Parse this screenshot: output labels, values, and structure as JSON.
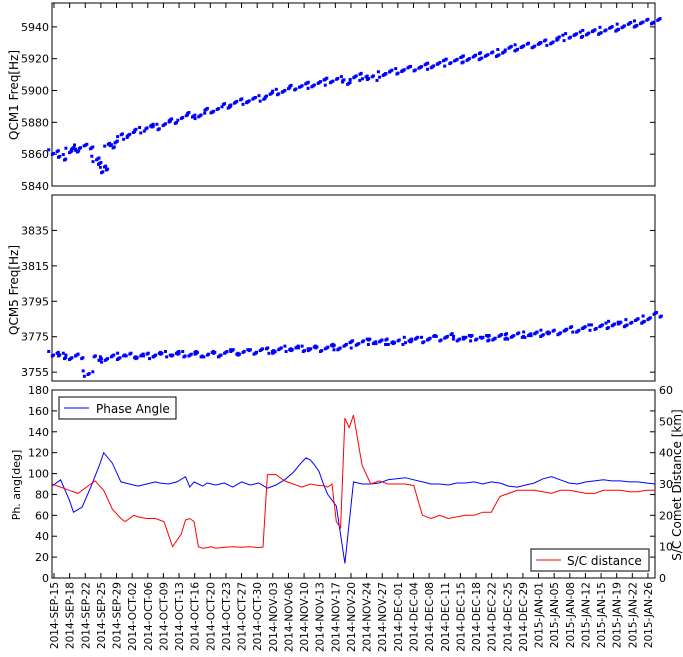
{
  "chart_data": [
    {
      "type": "scatter",
      "ylabel": "QCM1 Freq[Hz]",
      "ylim": [
        5840,
        5955
      ],
      "yticks": [
        5840,
        5860,
        5880,
        5900,
        5920,
        5940
      ],
      "xlim": [
        0,
        140
      ],
      "color": "#0000ff",
      "series": [
        {
          "x": [
            0,
            2,
            4,
            5,
            6,
            8,
            10,
            11,
            12,
            13,
            14,
            16,
            18,
            20,
            22,
            24,
            26,
            28,
            30,
            32,
            34,
            36,
            38,
            40,
            42,
            44,
            46,
            48,
            50,
            52,
            54,
            56,
            58,
            60,
            62,
            64,
            66,
            68,
            70,
            72,
            74,
            76,
            78,
            80,
            82,
            84,
            86,
            88,
            90,
            92,
            94,
            96,
            98,
            100,
            102,
            104,
            106,
            108,
            110,
            112,
            114,
            116,
            118,
            120,
            122,
            124,
            126,
            128,
            130,
            132,
            134,
            136,
            138,
            140
          ],
          "y": [
            5862,
            5859,
            5863,
            5864,
            5865,
            5866,
            5858,
            5854,
            5851,
            5866,
            5868,
            5872,
            5874,
            5876,
            5878,
            5878,
            5880,
            5882,
            5884,
            5886,
            5885,
            5888,
            5889,
            5891,
            5893,
            5894,
            5895,
            5896,
            5898,
            5900,
            5901,
            5903,
            5904,
            5905,
            5906,
            5907,
            5908,
            5906,
            5909,
            5910,
            5909,
            5911,
            5912,
            5913,
            5914,
            5915,
            5916,
            5917,
            5918,
            5919,
            5920,
            5921,
            5922,
            5923,
            5924,
            5925,
            5927,
            5928,
            5929,
            5930,
            5931,
            5932,
            5934,
            5935,
            5936,
            5937,
            5938,
            5939,
            5940,
            5941,
            5942,
            5943,
            5944,
            5945
          ]
        }
      ]
    },
    {
      "type": "scatter",
      "ylabel": "QCM5 Freq[Hz]",
      "ylim": [
        3750,
        3855
      ],
      "yticks": [
        3755,
        3775,
        3795,
        3815,
        3835
      ],
      "xlim": [
        0,
        140
      ],
      "color": "#0000ff",
      "series": [
        {
          "x": [
            0,
            2,
            4,
            6,
            8,
            10,
            12,
            14,
            16,
            18,
            20,
            22,
            24,
            26,
            28,
            30,
            32,
            34,
            36,
            38,
            40,
            42,
            44,
            46,
            48,
            50,
            52,
            54,
            56,
            58,
            60,
            62,
            64,
            66,
            68,
            70,
            72,
            74,
            76,
            78,
            80,
            82,
            84,
            86,
            88,
            90,
            92,
            94,
            96,
            98,
            100,
            102,
            104,
            106,
            108,
            110,
            112,
            114,
            116,
            118,
            120,
            122,
            124,
            126,
            128,
            130,
            132,
            134,
            136,
            138,
            140
          ],
          "y": [
            3766,
            3765,
            3764,
            3765,
            3755,
            3764,
            3763,
            3764,
            3765,
            3765,
            3765,
            3765,
            3766,
            3766,
            3766,
            3766,
            3766,
            3766,
            3766,
            3766,
            3767,
            3767,
            3767,
            3767,
            3768,
            3768,
            3768,
            3769,
            3769,
            3769,
            3769,
            3769,
            3770,
            3770,
            3771,
            3772,
            3773,
            3773,
            3773,
            3773,
            3773,
            3774,
            3774,
            3774,
            3775,
            3775,
            3776,
            3775,
            3775,
            3775,
            3775,
            3775,
            3776,
            3776,
            3777,
            3777,
            3777,
            3778,
            3778,
            3779,
            3780,
            3780,
            3781,
            3781,
            3782,
            3783,
            3783,
            3784,
            3785,
            3786,
            3788
          ]
        }
      ]
    },
    {
      "type": "line",
      "ylabel": "Ph. ang[deg]",
      "ylabel_right": "S/C Comet Distance [km]",
      "ylim": [
        0,
        180
      ],
      "ylim_right": [
        0,
        60
      ],
      "yticks": [
        0,
        20,
        40,
        60,
        80,
        100,
        120,
        140,
        160,
        180
      ],
      "yticks_right": [
        0,
        10,
        20,
        30,
        40,
        50,
        60
      ],
      "xlim": [
        0,
        140
      ],
      "categories": [
        "2014-SEP-15",
        "2014-SEP-18",
        "2014-SEP-22",
        "2014-SEP-25",
        "2014-SEP-29",
        "2014-OCT-02",
        "2014-OCT-06",
        "2014-OCT-09",
        "2014-OCT-13",
        "2014-OCT-16",
        "2014-OCT-20",
        "2014-OCT-23",
        "2014-OCT-27",
        "2014-OCT-30",
        "2014-NOV-03",
        "2014-NOV-06",
        "2014-NOV-10",
        "2014-NOV-13",
        "2014-NOV-17",
        "2014-NOV-20",
        "2014-NOV-24",
        "2014-NOV-27",
        "2014-DEC-01",
        "2014-DEC-04",
        "2014-DEC-08",
        "2014-DEC-11",
        "2014-DEC-15",
        "2014-DEC-18",
        "2014-DEC-22",
        "2014-DEC-25",
        "2014-DEC-29",
        "2015-JAN-01",
        "2015-JAN-05",
        "2015-JAN-08",
        "2015-JAN-12",
        "2015-JAN-15",
        "2015-JAN-19",
        "2015-JAN-22",
        "2015-JAN-26"
      ],
      "series": [
        {
          "name": "Phase Angle",
          "color": "#0000ff",
          "axis": "left",
          "x": [
            0,
            2,
            4,
            5,
            7,
            9,
            11,
            12,
            14,
            16,
            17,
            18,
            20,
            22,
            24,
            25,
            27,
            29,
            31,
            32,
            33,
            34,
            35,
            36,
            38,
            40,
            42,
            44,
            46,
            48,
            50,
            52,
            54,
            56,
            58,
            59,
            60,
            61,
            62,
            63,
            64,
            66,
            68,
            70,
            72,
            74,
            76,
            78,
            80,
            82,
            84,
            86,
            88,
            90,
            92,
            94,
            96,
            98,
            100,
            102,
            104,
            106,
            108,
            110,
            112,
            114,
            116,
            118,
            120,
            122,
            124,
            126,
            128,
            130,
            132,
            134,
            136,
            138,
            140
          ],
          "y": [
            88,
            94,
            75,
            63,
            68,
            87,
            108,
            120,
            110,
            92,
            91,
            90,
            88,
            90,
            92,
            91,
            90,
            92,
            97,
            87,
            92,
            90,
            88,
            91,
            89,
            91,
            87,
            92,
            89,
            91,
            86,
            89,
            94,
            101,
            111,
            115,
            113,
            108,
            102,
            90,
            80,
            69,
            14,
            92,
            90,
            90,
            91,
            94,
            95,
            96,
            94,
            92,
            90,
            90,
            89,
            91,
            91,
            92,
            90,
            92,
            91,
            88,
            87,
            89,
            91,
            95,
            97,
            94,
            91,
            90,
            92,
            93,
            94,
            93,
            93,
            92,
            92,
            91,
            90
          ]
        },
        {
          "name": "S/C distance",
          "color": "#ff0000",
          "axis": "right",
          "x": [
            0,
            2,
            4,
            6,
            8,
            10,
            12,
            14,
            16,
            17,
            18,
            19,
            20,
            22,
            24,
            26,
            28,
            30,
            31,
            32,
            33,
            34,
            35,
            36,
            37,
            38,
            40,
            42,
            44,
            46,
            48,
            49,
            50,
            52,
            54,
            56,
            58,
            60,
            62,
            63,
            64,
            65,
            66,
            67,
            68,
            69,
            70,
            72,
            74,
            76,
            78,
            80,
            82,
            84,
            86,
            88,
            90,
            92,
            94,
            96,
            98,
            100,
            102,
            104,
            106,
            108,
            110,
            112,
            114,
            116,
            118,
            120,
            122,
            124,
            126,
            128,
            130,
            132,
            134,
            136,
            138,
            140
          ],
          "y": [
            30,
            29,
            28,
            27,
            29,
            31,
            28,
            22,
            19,
            18,
            19,
            20,
            19.5,
            19,
            19,
            18,
            10,
            14,
            18.5,
            19,
            18,
            10,
            9.5,
            9.7,
            10,
            9.5,
            9.8,
            10,
            9.8,
            10,
            9.7,
            9.9,
            33,
            33,
            31,
            30,
            29,
            30,
            29.5,
            29.5,
            29,
            30,
            18,
            16,
            51,
            48,
            52,
            36,
            30,
            31,
            30,
            30,
            30,
            29.5,
            20,
            19,
            20,
            19,
            19.5,
            20,
            20,
            21,
            21,
            26,
            27,
            28,
            28,
            28,
            27.5,
            27,
            28,
            28,
            27.5,
            27,
            27,
            28,
            28,
            28,
            27.5,
            27.5,
            28,
            28
          ]
        }
      ]
    }
  ]
}
